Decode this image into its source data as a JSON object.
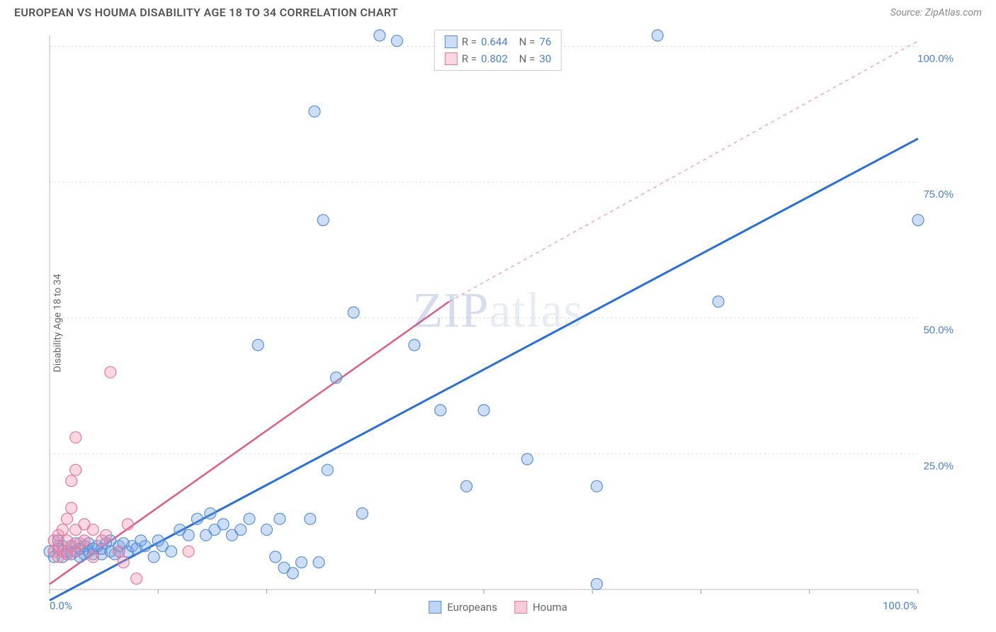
{
  "header": {
    "title": "EUROPEAN VS HOUMA DISABILITY AGE 18 TO 34 CORRELATION CHART",
    "source": "Source: ZipAtlas.com"
  },
  "ylabel": "Disability Age 18 to 34",
  "watermark": {
    "part1": "ZIP",
    "part2": "atlas"
  },
  "chart": {
    "type": "scatter",
    "xlim": [
      0,
      100
    ],
    "ylim": [
      0,
      102
    ],
    "x_axis_start_label": "0.0%",
    "x_axis_end_label": "100.0%",
    "grid_color": "#dddddd",
    "grid_dash": "3,3",
    "grid_lines_y": [
      25,
      50,
      75,
      100
    ],
    "grid_labels_y": [
      "25.0%",
      "50.0%",
      "75.0%",
      "100.0%"
    ],
    "x_ticks": [
      0,
      12.5,
      25,
      37.5,
      50,
      62.5,
      75,
      87.5,
      100
    ],
    "axis_line_color": "#bbbbbb",
    "background": "#ffffff",
    "marker_radius": 8,
    "marker_stroke_width": 1.2,
    "series": [
      {
        "name": "Europeans",
        "color_fill": "rgba(110,160,230,0.35)",
        "color_stroke": "#5a8fd6",
        "R": "0.644",
        "N": "76",
        "trend": {
          "x1": 0,
          "y1": -2,
          "x2": 100,
          "y2": 83,
          "stroke": "#2a6fd6",
          "width": 3,
          "dash": "none"
        },
        "points": [
          [
            0,
            7
          ],
          [
            0.5,
            6
          ],
          [
            1,
            7.5
          ],
          [
            1,
            9
          ],
          [
            1.5,
            6
          ],
          [
            1.5,
            8
          ],
          [
            2,
            6.5
          ],
          [
            2,
            7
          ],
          [
            2.5,
            8
          ],
          [
            2.5,
            6.5
          ],
          [
            3,
            7
          ],
          [
            3,
            8.5
          ],
          [
            3.5,
            6
          ],
          [
            3.5,
            7.5
          ],
          [
            4,
            6.5
          ],
          [
            4,
            8
          ],
          [
            4.5,
            7
          ],
          [
            4.5,
            8.5
          ],
          [
            5,
            6.5
          ],
          [
            5,
            7.5
          ],
          [
            5.5,
            8
          ],
          [
            6,
            6.5
          ],
          [
            6,
            7.5
          ],
          [
            6.5,
            8.5
          ],
          [
            7,
            7
          ],
          [
            7,
            9
          ],
          [
            7.5,
            6.5
          ],
          [
            8,
            8
          ],
          [
            8,
            7
          ],
          [
            8.5,
            8.5
          ],
          [
            9,
            7
          ],
          [
            9.5,
            8
          ],
          [
            10,
            7.5
          ],
          [
            10.5,
            9
          ],
          [
            11,
            8
          ],
          [
            12,
            6
          ],
          [
            12.5,
            9
          ],
          [
            13,
            8
          ],
          [
            14,
            7
          ],
          [
            15,
            11
          ],
          [
            16,
            10
          ],
          [
            17,
            13
          ],
          [
            18,
            10
          ],
          [
            18.5,
            14
          ],
          [
            19,
            11
          ],
          [
            20,
            12
          ],
          [
            21,
            10
          ],
          [
            22,
            11
          ],
          [
            23,
            13
          ],
          [
            24,
            45
          ],
          [
            25,
            11
          ],
          [
            26,
            6
          ],
          [
            26.5,
            13
          ],
          [
            27,
            4
          ],
          [
            28,
            3
          ],
          [
            29,
            5
          ],
          [
            30,
            13
          ],
          [
            30.5,
            88
          ],
          [
            31,
            5
          ],
          [
            31.5,
            68
          ],
          [
            32,
            22
          ],
          [
            33,
            39
          ],
          [
            35,
            51
          ],
          [
            36,
            14
          ],
          [
            38,
            102
          ],
          [
            40,
            101
          ],
          [
            42,
            45
          ],
          [
            45,
            33
          ],
          [
            48,
            19
          ],
          [
            50,
            33
          ],
          [
            55,
            24
          ],
          [
            63,
            19
          ],
          [
            63,
            1
          ],
          [
            70,
            102
          ],
          [
            77,
            53
          ],
          [
            100,
            68
          ]
        ]
      },
      {
        "name": "Houma",
        "color_fill": "rgba(240,140,170,0.35)",
        "color_stroke": "#e07aa0",
        "R": "0.802",
        "N": "30",
        "trend_solid": {
          "x1": 0,
          "y1": 1,
          "x2": 46,
          "y2": 53,
          "stroke": "#e05a8a",
          "width": 2.5
        },
        "trend_dashed": {
          "x1": 46,
          "y1": 53,
          "x2": 100,
          "y2": 101,
          "stroke": "#f0a8c0",
          "width": 1.5,
          "dash": "5,5"
        },
        "points": [
          [
            0.5,
            7
          ],
          [
            0.5,
            9
          ],
          [
            1,
            6
          ],
          [
            1,
            8
          ],
          [
            1,
            10
          ],
          [
            1.5,
            7
          ],
          [
            1.5,
            11
          ],
          [
            2,
            6.5
          ],
          [
            2,
            9
          ],
          [
            2,
            13
          ],
          [
            2.5,
            8
          ],
          [
            2.5,
            15
          ],
          [
            2.5,
            20
          ],
          [
            3,
            7
          ],
          [
            3,
            11
          ],
          [
            3,
            22
          ],
          [
            3,
            28
          ],
          [
            3.5,
            8.5
          ],
          [
            4,
            9
          ],
          [
            4,
            12
          ],
          [
            5,
            6
          ],
          [
            5,
            11
          ],
          [
            6,
            9
          ],
          [
            6.5,
            10
          ],
          [
            7,
            40
          ],
          [
            8,
            7
          ],
          [
            8.5,
            5
          ],
          [
            9,
            12
          ],
          [
            10,
            2
          ],
          [
            16,
            7
          ]
        ]
      }
    ],
    "legend_bottom": [
      {
        "label": "Europeans",
        "fill": "rgba(110,160,230,0.45)",
        "border": "#5a8fd6"
      },
      {
        "label": "Houma",
        "fill": "rgba(240,140,170,0.45)",
        "border": "#e07aa0"
      }
    ],
    "legend_top": {
      "r_label": "R =",
      "n_label": "N =",
      "value_color": "#4a7fd6",
      "text_color": "#666666"
    }
  }
}
